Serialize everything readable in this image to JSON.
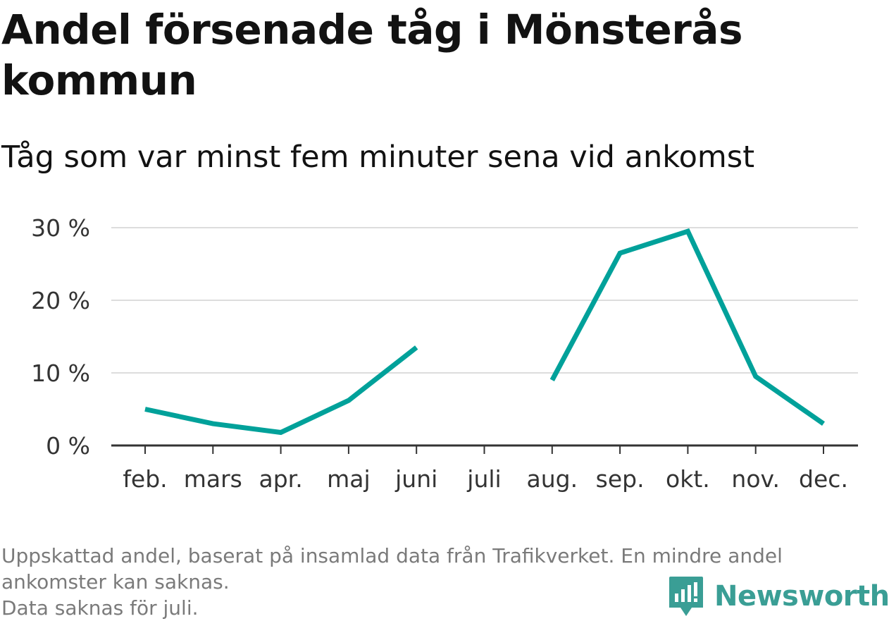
{
  "title": "Andel försenade tåg i Mönsterås kommun",
  "subtitle": "Tåg som var minst fem minuter sena vid ankomst",
  "notes": [
    "Uppskattad andel, baserat på insamlad data från Trafikverket. En mindre andel",
    "ankomster kan saknas.",
    "Data saknas för juli."
  ],
  "brand": {
    "name": "Newsworthy",
    "icon": "newsworthy-logo-icon",
    "color": "#3a9e95"
  },
  "chart_data": {
    "type": "line",
    "title": "Andel försenade tåg i Mönsterås kommun",
    "subtitle": "Tåg som var minst fem minuter sena vid ankomst",
    "categories": [
      "feb.",
      "mars",
      "apr.",
      "maj",
      "juni",
      "juli",
      "aug.",
      "sep.",
      "okt.",
      "nov.",
      "dec."
    ],
    "series": [
      {
        "values": [
          5.0,
          3.0,
          1.8,
          6.2,
          13.5,
          null,
          9.0,
          26.5,
          29.5,
          9.5,
          3.0
        ],
        "color": "#00a19a"
      }
    ],
    "ylim": [
      0,
      30
    ],
    "yticks": [
      0,
      10,
      20,
      30
    ],
    "ytick_labels": [
      "0 %",
      "10 %",
      "20 %",
      "30 %"
    ],
    "grid": true,
    "axis_color": "#333333",
    "grid_color": "#dddddd"
  }
}
